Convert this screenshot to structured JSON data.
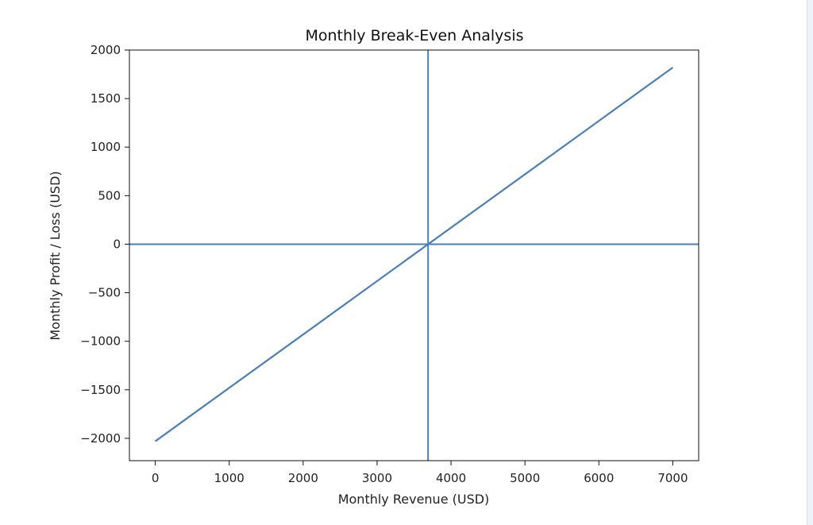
{
  "chart_data": {
    "type": "line",
    "title": "Monthly Break-Even Analysis",
    "xlabel": "Monthly Revenue (USD)",
    "ylabel": "Monthly Profit / Loss (USD)",
    "xlim": [
      -350,
      7350
    ],
    "ylim": [
      -2230,
      2000
    ],
    "x_ticks": [
      0,
      1000,
      2000,
      3000,
      4000,
      5000,
      6000,
      7000
    ],
    "y_ticks": [
      2000,
      1500,
      1000,
      500,
      0,
      -500,
      -1000,
      -1500,
      -2000
    ],
    "x_tick_labels": [
      "0",
      "1000",
      "2000",
      "3000",
      "4000",
      "5000",
      "6000",
      "7000"
    ],
    "y_tick_labels": [
      "2000",
      "1500",
      "1000",
      "500",
      "0",
      "−500",
      "−1000",
      "−1500",
      "−2000"
    ],
    "series": [
      {
        "x": [
          0,
          7000
        ],
        "y": [
          -2030,
          1820
        ],
        "color": "#4a7fb5"
      }
    ],
    "reference_lines": {
      "horizontal_y": 0,
      "vertical_x": 3690,
      "color": "#4a7fb5"
    },
    "grid": false,
    "legend": "none"
  }
}
